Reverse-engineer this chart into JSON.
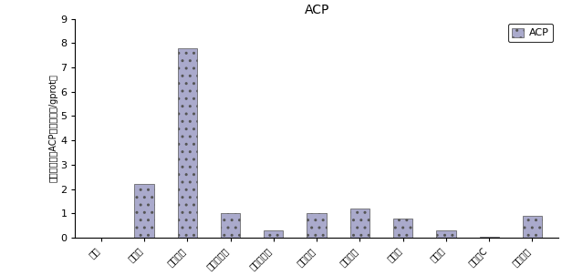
{
  "title": "ACP",
  "ylabel": "酸性磷酸酶（ACP，金氏单位/gprot）",
  "categories": [
    "对照",
    "松花粉",
    "枸杞多糖",
    "茶树菇多糖",
    "金针菇多糖",
    "天芝多糖",
    "云芝多糖",
    "树冬甘",
    "甲壳素",
    "维生素C",
    "左旋咪唑"
  ],
  "values": [
    0.0,
    2.2,
    7.8,
    1.0,
    0.3,
    1.0,
    1.2,
    0.8,
    0.3,
    0.05,
    0.9
  ],
  "bar_color": "#aaaacc",
  "bar_edgecolor": "#555555",
  "ylim": [
    0,
    9
  ],
  "yticks": [
    0,
    1,
    2,
    3,
    4,
    5,
    6,
    7,
    8,
    9
  ],
  "legend_label": "ACP",
  "title_fontsize": 10,
  "ylabel_fontsize": 7,
  "xtick_fontsize": 7,
  "ytick_fontsize": 8,
  "legend_fontsize": 8,
  "bar_width": 0.45
}
